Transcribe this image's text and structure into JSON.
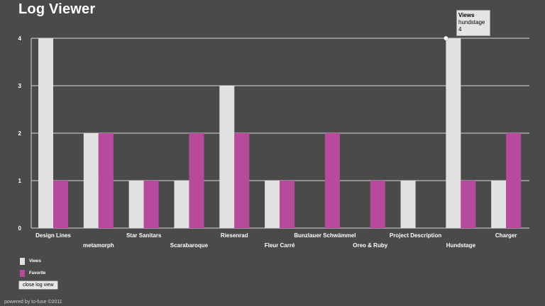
{
  "header": {
    "title": "Log Viewer"
  },
  "chart_data": {
    "type": "bar",
    "categories": [
      "Design Lines",
      "metamorph",
      "Star Sanitars",
      "Scarabaroque",
      "Riesenrad",
      "Fleur Carré",
      "Bunzlauer Schwämmel",
      "Oreo & Ruby",
      "Project Description",
      "Hundstage",
      "Charger"
    ],
    "series": [
      {
        "name": "Views",
        "color": "#e1e1e1",
        "values": [
          4,
          2,
          1,
          1,
          3,
          1,
          0,
          0,
          1,
          4,
          1
        ]
      },
      {
        "name": "Favorite",
        "color": "#b84a9e",
        "values": [
          1,
          2,
          1,
          2,
          2,
          1,
          2,
          1,
          0,
          1,
          2
        ]
      }
    ],
    "ylim": [
      0,
      4
    ],
    "yticks": [
      "0",
      "1",
      "2",
      "3",
      "4"
    ],
    "grid": true,
    "legend_position": "bottom-left"
  },
  "tooltip": {
    "title": "Views",
    "category": "hundstage",
    "value": "4"
  },
  "controls": {
    "close_label": "close log view"
  },
  "footer": {
    "text": "powered by to-fuse ©2011"
  }
}
